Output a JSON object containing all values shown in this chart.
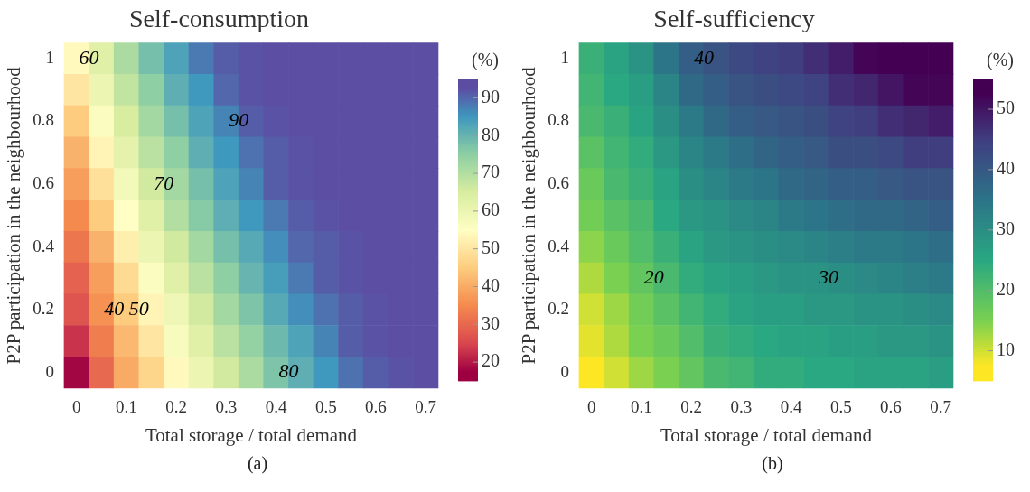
{
  "chart_data": [
    {
      "type": "heatmap",
      "title": "Self-consumption",
      "xlabel": "Total storage / total demand",
      "ylabel": "P2P participation in the neighbourhood",
      "clabel": "(%)",
      "categories": [
        "0",
        null,
        "0.1",
        null,
        "0.2",
        null,
        "0.3",
        null,
        "0.4",
        null,
        "0.5",
        null,
        "0.6",
        null,
        "0.7"
      ],
      "y_categories": [
        "1",
        null,
        "0.8",
        null,
        "0.6",
        null,
        "0.4",
        null,
        "0.2",
        null,
        "0"
      ],
      "cells": [
        [
          54,
          63,
          71,
          78,
          83,
          88,
          91,
          92,
          93,
          94,
          95,
          95,
          95,
          95,
          95
        ],
        [
          50,
          60,
          68,
          75,
          81,
          85,
          90,
          92,
          93,
          94,
          95,
          95,
          95,
          95,
          95
        ],
        [
          45,
          56,
          65,
          72,
          78,
          83,
          87,
          91,
          92,
          93,
          94,
          95,
          95,
          95,
          95
        ],
        [
          41,
          53,
          62,
          69,
          75,
          81,
          85,
          89,
          91,
          92,
          93,
          94,
          95,
          95,
          95
        ],
        [
          38,
          49,
          58,
          66,
          72,
          78,
          83,
          87,
          91,
          92,
          93,
          94,
          95,
          95,
          95
        ],
        [
          35,
          45,
          55,
          63,
          70,
          76,
          81,
          85,
          88,
          91,
          92,
          93,
          94,
          95,
          95
        ],
        [
          32,
          41,
          52,
          60,
          66,
          72,
          78,
          82,
          86,
          90,
          91,
          92,
          93,
          94,
          95
        ],
        [
          29,
          38,
          48,
          56,
          63,
          69,
          75,
          80,
          84,
          88,
          91,
          92,
          93,
          94,
          95
        ],
        [
          27,
          36,
          45,
          53,
          59,
          66,
          72,
          77,
          82,
          86,
          89,
          91,
          92,
          93,
          94
        ],
        [
          23,
          33,
          42,
          50,
          57,
          63,
          69,
          74,
          79,
          83,
          87,
          91,
          92,
          93,
          94
        ],
        [
          18,
          30,
          40,
          47,
          54,
          60,
          66,
          71,
          77,
          81,
          85,
          89,
          91,
          92,
          93
        ]
      ],
      "clim": [
        15,
        95
      ],
      "cticks": [
        20,
        30,
        40,
        50,
        60,
        70,
        80,
        90
      ],
      "colors": [
        "#9e0142",
        "#d9474f",
        "#f48a4e",
        "#fdcc7e",
        "#fffec4",
        "#d8eda0",
        "#8ecfa3",
        "#3f98bd",
        "#5c4ea3"
      ],
      "annotations": [
        "60",
        "90",
        "70",
        "40",
        "50",
        "80",
        "(a)"
      ]
    },
    {
      "type": "heatmap",
      "title": "Self-sufficiency",
      "xlabel": "Total storage / total demand",
      "ylabel": "P2P participation in the neighbourhood",
      "clabel": "(%)",
      "categories": [
        "0",
        null,
        "0.1",
        null,
        "0.2",
        null,
        "0.3",
        null,
        "0.4",
        null,
        "0.5",
        null,
        "0.6",
        null,
        "0.7"
      ],
      "y_categories": [
        "1",
        null,
        "0.8",
        null,
        "0.6",
        null,
        "0.4",
        null,
        "0.2",
        null,
        "0"
      ],
      "cells": [
        [
          23,
          26,
          29,
          35,
          39,
          41,
          43,
          44,
          45,
          47,
          49,
          52,
          53,
          54,
          55
        ],
        [
          22,
          25,
          27,
          32,
          37,
          39,
          41,
          42,
          43,
          44,
          47,
          48,
          50,
          52,
          52
        ],
        [
          21,
          23,
          26,
          30,
          34,
          37,
          39,
          40,
          41,
          42,
          44,
          45,
          47,
          48,
          49
        ],
        [
          19,
          22,
          24,
          28,
          32,
          34,
          36,
          38,
          39,
          40,
          42,
          42,
          43,
          45,
          45
        ],
        [
          17,
          21,
          23,
          26,
          30,
          32,
          34,
          35,
          37,
          38,
          39,
          39,
          40,
          41,
          41
        ],
        [
          16,
          19,
          21,
          25,
          28,
          29,
          31,
          32,
          34,
          35,
          36,
          37,
          37,
          38,
          39
        ],
        [
          14,
          17,
          20,
          23,
          26,
          28,
          29,
          30,
          31,
          32,
          33,
          34,
          34,
          35,
          36
        ],
        [
          12,
          15,
          18,
          21,
          24,
          26,
          27,
          28,
          29,
          29,
          30,
          31,
          32,
          33,
          34
        ],
        [
          10,
          13,
          16,
          19,
          22,
          24,
          26,
          27,
          27,
          28,
          28,
          29,
          29,
          30,
          31
        ],
        [
          9,
          12,
          15,
          17,
          20,
          23,
          24,
          25,
          26,
          26,
          27,
          27,
          28,
          28,
          29
        ],
        [
          7,
          10,
          13,
          15,
          18,
          21,
          22,
          24,
          24,
          25,
          25,
          26,
          26,
          26,
          27
        ]
      ],
      "clim": [
        5,
        55
      ],
      "cticks": [
        10,
        20,
        30,
        40,
        50
      ],
      "colors": [
        "#fde725",
        "#7ad151",
        "#2aa882",
        "#2c7488",
        "#413e80",
        "#440154"
      ],
      "annotations": [
        "40",
        "20",
        "30",
        "(b)"
      ]
    }
  ]
}
